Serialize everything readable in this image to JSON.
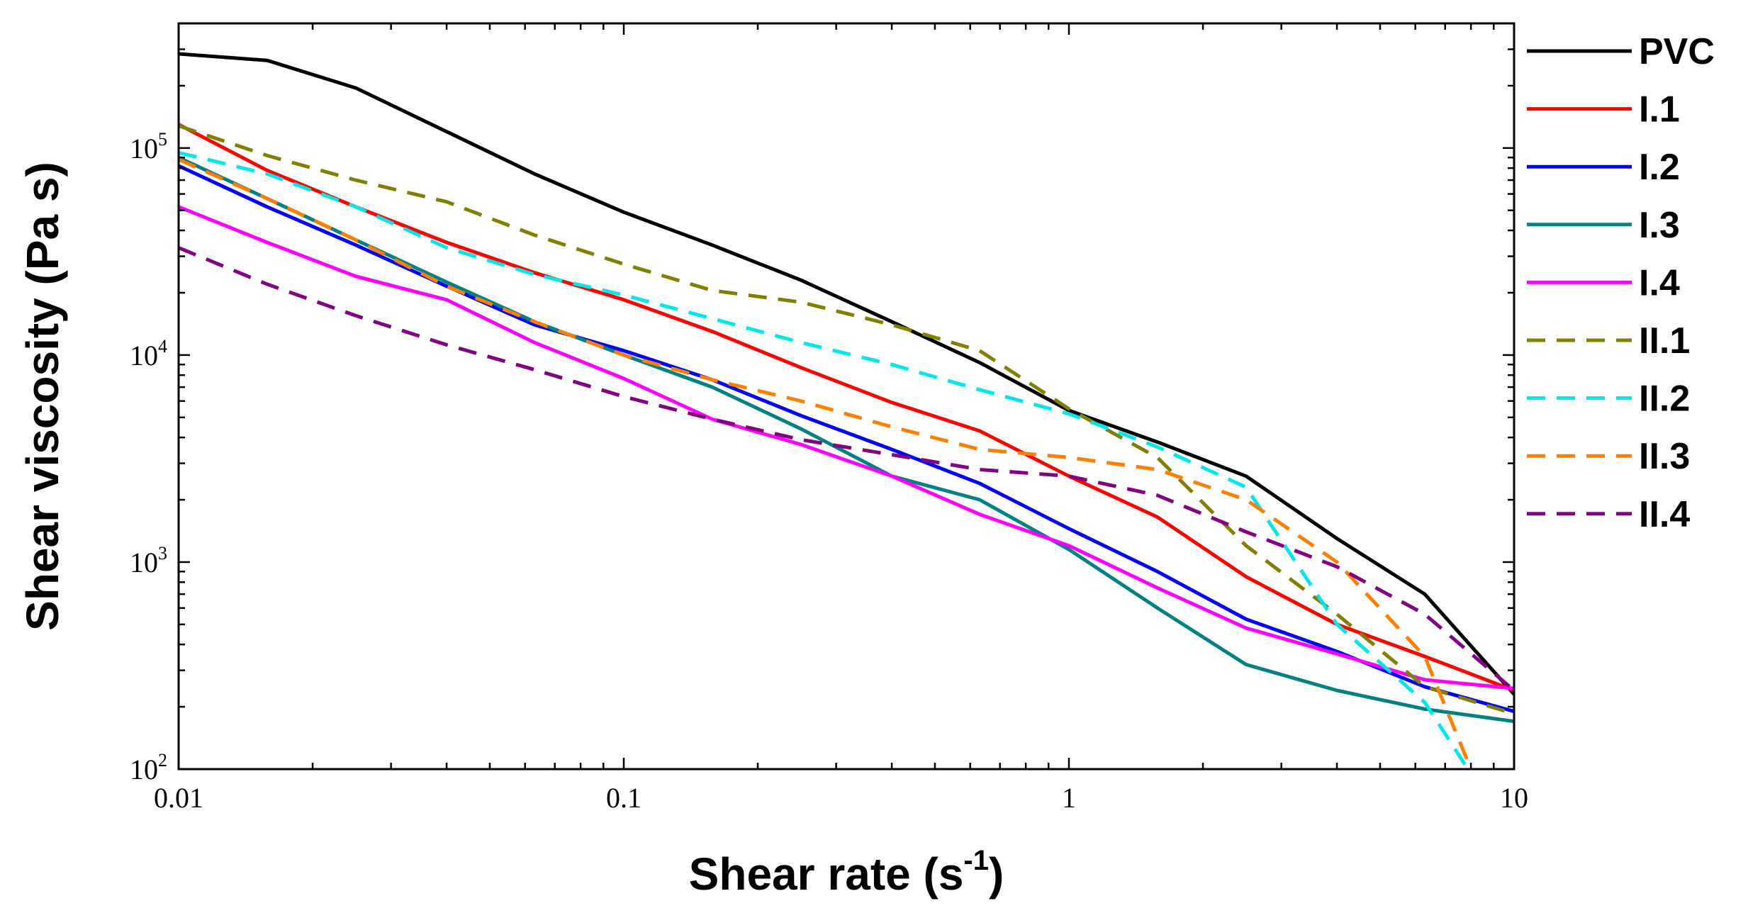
{
  "chart_data": {
    "type": "line",
    "xscale": "log",
    "yscale": "log",
    "xlim": [
      0.01,
      10
    ],
    "ylim": [
      100,
      400000
    ],
    "xlabel": "Shear rate (s",
    "xlabel_sup": "-1",
    "xlabel_close": ")",
    "ylabel": "Shear viscosity (Pa s)",
    "xticks": [
      {
        "value": 0.01,
        "label": "0.01"
      },
      {
        "value": 0.1,
        "label": "0.1"
      },
      {
        "value": 1,
        "label": "1"
      },
      {
        "value": 10,
        "label": "10"
      }
    ],
    "yticks": [
      {
        "value": 100,
        "base": "10",
        "exp": "2"
      },
      {
        "value": 1000,
        "base": "10",
        "exp": "3"
      },
      {
        "value": 10000,
        "base": "10",
        "exp": "4"
      },
      {
        "value": 100000,
        "base": "10",
        "exp": "5"
      }
    ],
    "legend_position": "right-outside",
    "series": [
      {
        "name": "PVC",
        "color": "#000000",
        "style": "solid",
        "x": [
          0.01,
          0.0158,
          0.025,
          0.04,
          0.063,
          0.1,
          0.158,
          0.25,
          0.4,
          0.63,
          1,
          1.58,
          2.5,
          4,
          6.3,
          10
        ],
        "y": [
          285000,
          265000,
          195000,
          120000,
          75000,
          49000,
          34000,
          23000,
          14500,
          9200,
          5400,
          3800,
          2600,
          1300,
          700,
          230
        ]
      },
      {
        "name": "I.1",
        "color": "#ff0000",
        "style": "solid",
        "x": [
          0.01,
          0.0158,
          0.025,
          0.04,
          0.063,
          0.1,
          0.158,
          0.25,
          0.4,
          0.63,
          1,
          1.58,
          2.5,
          4,
          6.3,
          10
        ],
        "y": [
          130000,
          78000,
          52000,
          35000,
          25000,
          18500,
          13000,
          8700,
          5900,
          4300,
          2600,
          1650,
          850,
          500,
          350,
          240
        ]
      },
      {
        "name": "I.2",
        "color": "#0000ff",
        "style": "solid",
        "x": [
          0.01,
          0.0158,
          0.025,
          0.04,
          0.063,
          0.1,
          0.158,
          0.25,
          0.4,
          0.63,
          1,
          1.58,
          2.5,
          4,
          6.3,
          10
        ],
        "y": [
          82000,
          52000,
          34000,
          21500,
          14000,
          10500,
          7600,
          5100,
          3500,
          2400,
          1450,
          900,
          530,
          370,
          250,
          190
        ]
      },
      {
        "name": "I.3",
        "color": "#008080",
        "style": "solid",
        "x": [
          0.01,
          0.0158,
          0.025,
          0.04,
          0.063,
          0.1,
          0.158,
          0.25,
          0.4,
          0.63,
          1,
          1.58,
          2.5,
          4,
          6.3,
          10
        ],
        "y": [
          90000,
          57000,
          36000,
          22500,
          14500,
          10000,
          7000,
          4400,
          2600,
          2000,
          1150,
          600,
          320,
          240,
          195,
          170
        ]
      },
      {
        "name": "I.4",
        "color": "#ff00ff",
        "style": "solid",
        "x": [
          0.01,
          0.0158,
          0.025,
          0.04,
          0.063,
          0.1,
          0.158,
          0.25,
          0.4,
          0.63,
          1,
          1.58,
          2.5,
          4,
          6.3,
          10
        ],
        "y": [
          52000,
          35000,
          24000,
          18500,
          11500,
          7700,
          4900,
          3700,
          2600,
          1700,
          1200,
          750,
          480,
          360,
          270,
          245
        ]
      },
      {
        "name": "II.1",
        "color": "#808000",
        "style": "dashed",
        "x": [
          0.01,
          0.0158,
          0.025,
          0.04,
          0.063,
          0.1,
          0.158,
          0.25,
          0.4,
          0.63,
          1,
          1.58,
          2.5,
          4,
          6.3,
          10
        ],
        "y": [
          128000,
          92000,
          70000,
          55000,
          38000,
          27500,
          20500,
          18000,
          14000,
          10500,
          5500,
          3200,
          1200,
          560,
          250,
          185
        ]
      },
      {
        "name": "II.2",
        "color": "#00e6e6",
        "style": "dashed",
        "x": [
          0.01,
          0.0158,
          0.025,
          0.04,
          0.063,
          0.1,
          0.158,
          0.25,
          0.4,
          0.63,
          1,
          1.58,
          2.5,
          4,
          6.3,
          8
        ],
        "y": [
          95000,
          75000,
          52000,
          33000,
          24500,
          19500,
          15000,
          11500,
          9000,
          6800,
          5200,
          3600,
          2300,
          500,
          210,
          95
        ]
      },
      {
        "name": "II.3",
        "color": "#ff8000",
        "style": "dashed",
        "x": [
          0.01,
          0.0158,
          0.025,
          0.04,
          0.063,
          0.1,
          0.158,
          0.25,
          0.4,
          0.63,
          1,
          1.58,
          2.5,
          4,
          6.3,
          8
        ],
        "y": [
          88000,
          57000,
          36000,
          21500,
          14500,
          10000,
          7600,
          6000,
          4500,
          3500,
          3200,
          2800,
          2000,
          1000,
          350,
          100
        ]
      },
      {
        "name": "II.4",
        "color": "#800080",
        "style": "dashed",
        "x": [
          0.01,
          0.0158,
          0.025,
          0.04,
          0.063,
          0.1,
          0.158,
          0.25,
          0.4,
          0.63,
          1,
          1.58,
          2.5,
          4,
          6.3,
          10
        ],
        "y": [
          33000,
          22000,
          15500,
          11200,
          8500,
          6300,
          4900,
          3900,
          3300,
          2800,
          2600,
          2100,
          1400,
          950,
          560,
          240
        ]
      }
    ]
  }
}
